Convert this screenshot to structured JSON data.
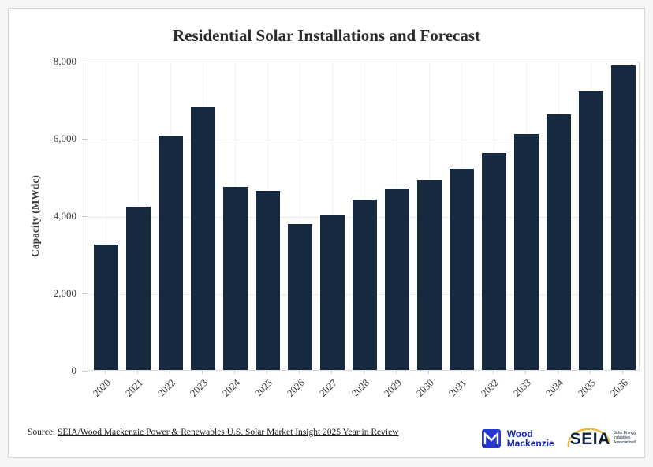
{
  "frame": {
    "title": "Residential Solar Installations and Forecast"
  },
  "chart_data": {
    "type": "bar",
    "title": "Residential Solar Installations and Forecast",
    "categories": [
      "2020",
      "2021",
      "2022",
      "2023",
      "2024",
      "2025",
      "2026",
      "2027",
      "2028",
      "2029",
      "2030",
      "2031",
      "2032",
      "2033",
      "2034",
      "2035",
      "2036"
    ],
    "values": [
      3250,
      4230,
      6060,
      6800,
      4730,
      4640,
      3780,
      4030,
      4400,
      4700,
      4910,
      5200,
      5610,
      6100,
      6610,
      7230,
      7870
    ],
    "xlabel": "",
    "ylabel": "Capacity (MWdc)",
    "ylim": [
      0,
      8000
    ],
    "yticks": [
      0,
      2000,
      4000,
      6000,
      8000
    ],
    "ytick_labels": [
      "0",
      "2,000",
      "4,000",
      "6,000",
      "8,000"
    ],
    "bar_color": "#16293e",
    "grid": "horizontal-light",
    "legend": "none"
  },
  "footer": {
    "source_prefix": "Source:",
    "source_link": "SEIA/Wood Mackenzie Power & Renewables U.S. Solar Market Insight 2025 Year in Review"
  },
  "logos": {
    "wood_mackenzie": {
      "line1": "Wood",
      "line2": "Mackenzie",
      "mark_color": "#2636d1",
      "text_color": "#1226aa"
    },
    "seia": {
      "word": "SEIA",
      "tagline_line1": "Solar Energy",
      "tagline_line2": "Industries",
      "tagline_line3": "Association®",
      "arc_color": "#f0b43c",
      "text_color": "#0d2240"
    }
  }
}
